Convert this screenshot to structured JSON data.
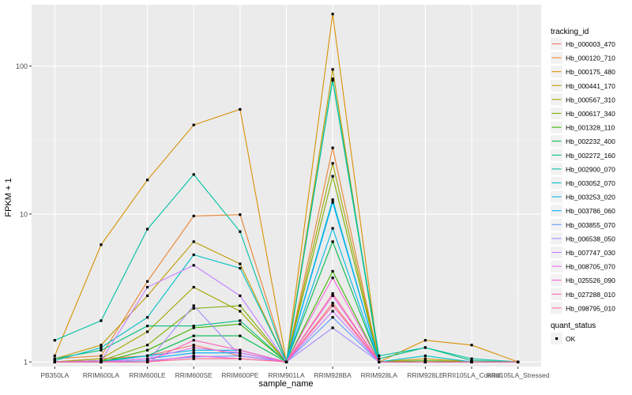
{
  "chart_data": {
    "type": "line",
    "xlabel": "sample_name",
    "ylabel": "FPKM + 1",
    "y_scale": "log10",
    "ylim": [
      0.93,
      260
    ],
    "y_ticks": [
      1,
      10,
      100
    ],
    "y_tick_labels": [
      "1",
      "10",
      "100"
    ],
    "grid": true,
    "legend_position": "right",
    "categories": [
      "PB350LA",
      "RRIM600LA",
      "RRIM600LE",
      "RRIM600SE",
      "RRIM600PE",
      "RRIM901LA",
      "RRIM928BA",
      "RRIM928LA",
      "RRIM928LE",
      "RRII105LA_Control",
      "RRII105LA_Stressed"
    ],
    "legend_title": "tracking_id",
    "series": [
      {
        "name": "Hb_000003_470",
        "color": "#F8766D",
        "values": [
          1.0,
          1.05,
          1.1,
          1.3,
          1.1,
          1.0,
          2.5,
          1.0,
          1.0,
          1.0,
          1.0
        ]
      },
      {
        "name": "Hb_000120_710",
        "color": "#EA8331",
        "values": [
          1.05,
          1.1,
          3.5,
          9.7,
          9.9,
          1.0,
          28.0,
          1.0,
          1.0,
          1.0,
          1.0
        ]
      },
      {
        "name": "Hb_000175_480",
        "color": "#D89000",
        "values": [
          1.1,
          6.2,
          17.0,
          40.0,
          51.0,
          1.0,
          225.0,
          1.0,
          1.4,
          1.3,
          1.0
        ]
      },
      {
        "name": "Hb_000441_170",
        "color": "#C09B00",
        "values": [
          1.05,
          1.3,
          2.8,
          6.5,
          4.6,
          1.0,
          95.0,
          1.0,
          1.05,
          1.0,
          1.0
        ]
      },
      {
        "name": "Hb_000567_310",
        "color": "#A3A500",
        "values": [
          1.0,
          1.05,
          1.6,
          3.2,
          2.2,
          1.0,
          22.0,
          1.0,
          1.0,
          1.0,
          1.0
        ]
      },
      {
        "name": "Hb_000617_340",
        "color": "#7CAE00",
        "values": [
          1.0,
          1.02,
          1.3,
          2.3,
          2.4,
          1.0,
          18.0,
          1.0,
          1.0,
          1.0,
          1.0
        ]
      },
      {
        "name": "Hb_001328_110",
        "color": "#39B600",
        "values": [
          1.0,
          1.0,
          1.2,
          1.7,
          1.8,
          1.0,
          4.1,
          1.0,
          1.02,
          1.0,
          1.0
        ]
      },
      {
        "name": "Hb_002232_400",
        "color": "#00BB4E",
        "values": [
          1.0,
          1.02,
          1.1,
          1.5,
          1.5,
          1.0,
          6.5,
          1.0,
          1.0,
          1.0,
          1.0
        ]
      },
      {
        "name": "Hb_002272_160",
        "color": "#00BF7D",
        "values": [
          1.05,
          1.2,
          1.75,
          1.75,
          1.9,
          1.0,
          80.0,
          1.05,
          1.25,
          1.02,
          1.0
        ]
      },
      {
        "name": "Hb_002900_070",
        "color": "#00C1A3",
        "values": [
          1.4,
          1.9,
          7.9,
          18.5,
          7.6,
          1.0,
          82.0,
          1.1,
          1.25,
          1.05,
          1.0
        ]
      },
      {
        "name": "Hb_003052_070",
        "color": "#00BFC4",
        "values": [
          1.02,
          1.25,
          2.0,
          5.3,
          4.3,
          1.0,
          12.5,
          1.0,
          1.1,
          1.0,
          1.0
        ]
      },
      {
        "name": "Hb_003253_020",
        "color": "#00B8E5",
        "values": [
          1.0,
          1.0,
          1.1,
          1.2,
          1.2,
          1.0,
          8.0,
          1.0,
          1.0,
          1.0,
          1.0
        ]
      },
      {
        "name": "Hb_003786_060",
        "color": "#00ABFD",
        "values": [
          1.0,
          1.0,
          1.05,
          1.15,
          1.15,
          1.0,
          12.0,
          1.0,
          1.0,
          1.0,
          1.0
        ]
      },
      {
        "name": "Hb_003855_070",
        "color": "#619CFF",
        "values": [
          1.0,
          1.0,
          1.02,
          1.08,
          1.1,
          1.0,
          2.0,
          1.0,
          1.0,
          1.0,
          1.0
        ]
      },
      {
        "name": "Hb_006538_050",
        "color": "#A58AFF",
        "values": [
          1.0,
          1.0,
          1.0,
          2.4,
          1.1,
          1.0,
          1.7,
          1.0,
          1.0,
          1.0,
          1.0
        ]
      },
      {
        "name": "Hb_007747_030",
        "color": "#C77CFF",
        "values": [
          1.0,
          1.02,
          3.2,
          4.5,
          2.8,
          1.0,
          2.2,
          1.0,
          1.0,
          1.0,
          1.0
        ]
      },
      {
        "name": "Hb_008705_070",
        "color": "#E76BF3",
        "values": [
          1.0,
          1.0,
          1.05,
          1.25,
          1.15,
          1.0,
          2.8,
          1.0,
          1.0,
          1.0,
          1.0
        ]
      },
      {
        "name": "Hb_025526_090",
        "color": "#FA62DB",
        "values": [
          1.0,
          1.0,
          1.0,
          1.1,
          1.05,
          1.0,
          3.7,
          1.0,
          1.0,
          1.0,
          1.0
        ]
      },
      {
        "name": "Hb_027288_010",
        "color": "#FF62BC",
        "values": [
          1.0,
          1.0,
          1.0,
          1.4,
          1.2,
          1.0,
          2.4,
          1.0,
          1.0,
          1.0,
          1.0
        ]
      },
      {
        "name": "Hb_098795_010",
        "color": "#FF6C91",
        "values": [
          1.0,
          1.0,
          1.0,
          1.05,
          1.05,
          1.0,
          2.9,
          1.0,
          1.0,
          1.0,
          1.0
        ]
      }
    ],
    "point_legend": {
      "title": "quant_status",
      "items": [
        "OK"
      ]
    },
    "colors": {
      "panel_bg": "#EBEBEB",
      "grid_major": "#FFFFFF",
      "text": "#4D4D4D",
      "point": "#000000"
    }
  }
}
